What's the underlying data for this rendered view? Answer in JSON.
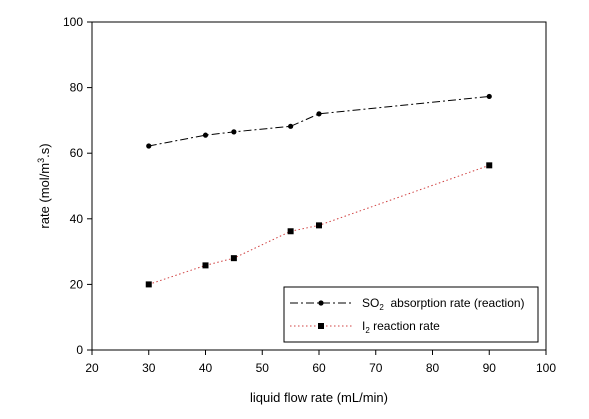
{
  "chart_data": {
    "type": "line",
    "xlabel": "liquid flow rate (mL/min)",
    "ylabel": {
      "prefix": "rate (mol/m",
      "sup": "3",
      "suffix": ".s)"
    },
    "xlim": [
      20,
      100
    ],
    "ylim": [
      0,
      100
    ],
    "xticks": [
      20,
      30,
      40,
      50,
      60,
      70,
      80,
      90,
      100
    ],
    "yticks": [
      0,
      20,
      40,
      60,
      80,
      100
    ],
    "grid": false,
    "legend_position": "bottom-right",
    "series": [
      {
        "key": "so2",
        "name": "SO2  absorption rate (reaction)",
        "legend_parts": {
          "main": "SO",
          "sub": "2",
          "rest": "  absorption rate (reaction)"
        },
        "line_style": "dash-dot",
        "marker": "circle",
        "color": "#000000",
        "x": [
          30,
          40,
          45,
          55,
          60,
          90
        ],
        "y": [
          62.2,
          65.5,
          66.5,
          68.2,
          72.0,
          77.3
        ]
      },
      {
        "key": "i2",
        "name": "I2 reaction rate",
        "legend_parts": {
          "main": "I",
          "sub": "2",
          "rest": " reaction rate"
        },
        "line_style": "dotted",
        "marker": "square",
        "color": "#000000",
        "line_color": "#d04040",
        "x": [
          30,
          40,
          45,
          55,
          60,
          90
        ],
        "y": [
          20.0,
          25.8,
          28.0,
          36.2,
          38.0,
          56.3
        ]
      }
    ]
  }
}
